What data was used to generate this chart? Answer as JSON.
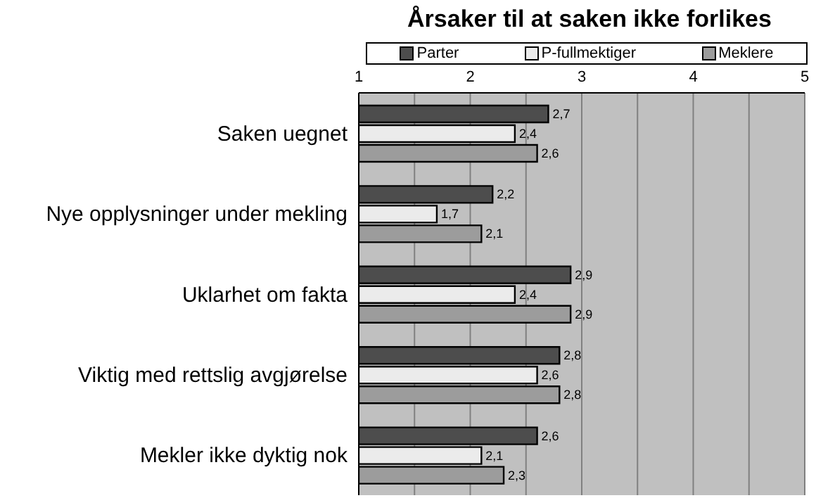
{
  "chart_data": {
    "type": "bar",
    "orientation": "horizontal",
    "title": "Årsaker til at saken ikke forlikes",
    "categories": [
      "Saken uegnet",
      "Nye opplysninger under mekling",
      "Uklarhet om fakta",
      "Viktig med rettslig avgjørelse",
      "Mekler ikke dyktig nok"
    ],
    "series": [
      {
        "name": "Parter",
        "color": "#4d4d4d",
        "values": [
          2.7,
          2.2,
          2.9,
          2.8,
          2.6
        ],
        "value_labels": [
          "2,7",
          "2,2",
          "2,9",
          "2,8",
          "2,6"
        ]
      },
      {
        "name": "P-fullmektiger",
        "color": "#ebebeb",
        "values": [
          2.4,
          1.7,
          2.4,
          2.6,
          2.1
        ],
        "value_labels": [
          "2,4",
          "1,7",
          "2,4",
          "2,6",
          "2,1"
        ]
      },
      {
        "name": "Meklere",
        "color": "#9c9c9c",
        "values": [
          2.6,
          2.1,
          2.9,
          2.8,
          2.3
        ],
        "value_labels": [
          "2,6",
          "2,1",
          "2,9",
          "2,8",
          "2,3"
        ]
      }
    ],
    "xlim": [
      1,
      5
    ],
    "xticks": [
      1,
      {
        "value": 1.5,
        "label": null
      },
      2,
      {
        "value": 2.5,
        "label": null
      },
      3,
      {
        "value": 3.5,
        "label": null
      },
      4,
      {
        "value": 4.5,
        "label": null
      },
      5
    ],
    "grid": "x",
    "legend": "top"
  }
}
